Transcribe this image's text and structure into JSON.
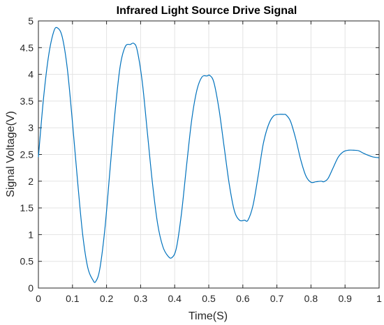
{
  "chart_data": {
    "type": "line",
    "title": "Infrared Light Source Drive Signal",
    "xlabel": "Time(S)",
    "ylabel": "Signal Voltage(V)",
    "xlim": [
      0,
      1
    ],
    "ylim": [
      0,
      5
    ],
    "xticks": [
      0,
      0.1,
      0.2,
      0.3,
      0.4,
      0.5,
      0.6,
      0.7,
      0.8,
      0.9,
      1
    ],
    "xtick_labels": [
      "0",
      "0.1",
      "0.2",
      "0.3",
      "0.4",
      "0.5",
      "0.6",
      "0.7",
      "0.8",
      "0.9",
      "1"
    ],
    "yticks": [
      0,
      0.5,
      1,
      1.5,
      2,
      2.5,
      3,
      3.5,
      4,
      4.5,
      5
    ],
    "ytick_labels": [
      "0",
      "0.5",
      "1",
      "1.5",
      "2",
      "2.5",
      "3",
      "3.5",
      "4",
      "4.5",
      "5"
    ],
    "grid": true,
    "series": [
      {
        "color": "#0072BD",
        "x": [
          0,
          0.015,
          0.03,
          0.045,
          0.056,
          0.07,
          0.085,
          0.1,
          0.115,
          0.13,
          0.145,
          0.16,
          0.168,
          0.18,
          0.195,
          0.21,
          0.225,
          0.24,
          0.255,
          0.27,
          0.28,
          0.29,
          0.305,
          0.32,
          0.335,
          0.35,
          0.365,
          0.38,
          0.392,
          0.405,
          0.42,
          0.435,
          0.45,
          0.465,
          0.48,
          0.495,
          0.503,
          0.515,
          0.53,
          0.545,
          0.56,
          0.575,
          0.59,
          0.605,
          0.615,
          0.63,
          0.645,
          0.66,
          0.675,
          0.69,
          0.705,
          0.72,
          0.727,
          0.74,
          0.755,
          0.77,
          0.785,
          0.8,
          0.815,
          0.83,
          0.838,
          0.85,
          0.865,
          0.88,
          0.895,
          0.91,
          0.925,
          0.94,
          0.955,
          0.97,
          0.985,
          1.0
        ],
        "y": [
          2.45,
          3.55,
          4.35,
          4.8,
          4.87,
          4.7,
          4.1,
          3.1,
          2.0,
          1.0,
          0.38,
          0.15,
          0.12,
          0.35,
          1.1,
          2.2,
          3.3,
          4.15,
          4.52,
          4.56,
          4.58,
          4.45,
          3.85,
          2.9,
          1.95,
          1.2,
          0.78,
          0.6,
          0.57,
          0.75,
          1.4,
          2.3,
          3.15,
          3.7,
          3.95,
          3.97,
          3.98,
          3.85,
          3.35,
          2.65,
          1.95,
          1.45,
          1.27,
          1.27,
          1.27,
          1.55,
          2.1,
          2.7,
          3.05,
          3.22,
          3.25,
          3.25,
          3.24,
          3.12,
          2.8,
          2.4,
          2.1,
          1.98,
          1.99,
          2.0,
          1.99,
          2.05,
          2.25,
          2.45,
          2.55,
          2.58,
          2.58,
          2.57,
          2.52,
          2.48,
          2.45,
          2.44
        ]
      }
    ]
  }
}
